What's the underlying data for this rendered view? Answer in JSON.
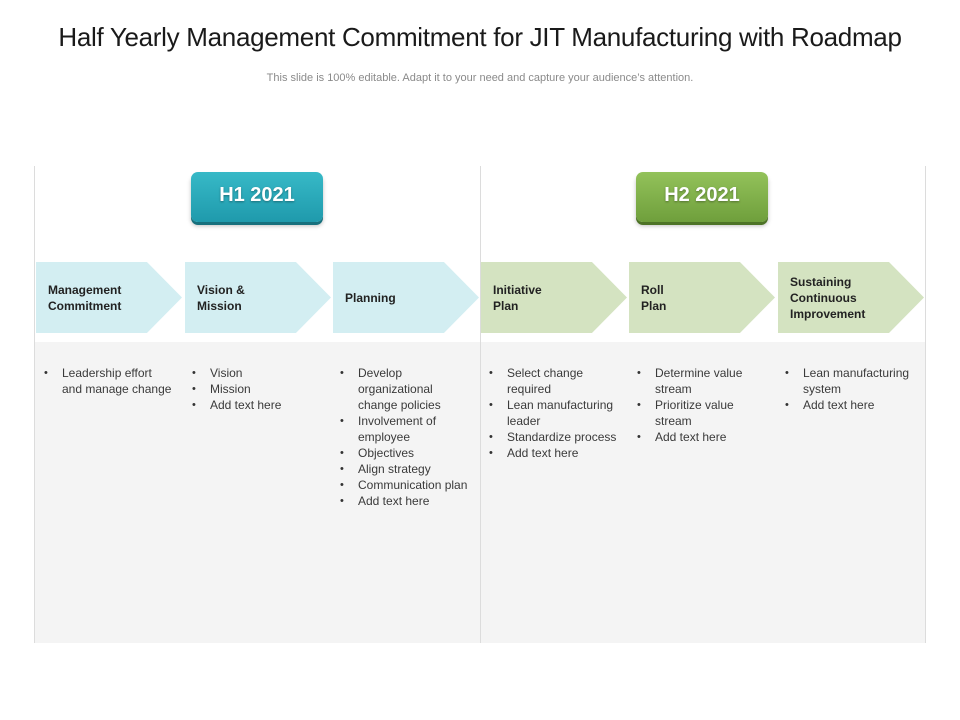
{
  "title": "Half Yearly Management Commitment for JIT Manufacturing with Roadmap",
  "subtitle": "This slide is 100% editable. Adapt it to your need and capture your audience’s attention.",
  "halves": [
    {
      "label": "H1 2021",
      "color": "#2aaabb"
    },
    {
      "label": "H2 2021",
      "color": "#82b14b"
    }
  ],
  "columns": [
    {
      "header": "Management\nCommitment",
      "color": "#d3eef2",
      "items": [
        "Leadership effort\nand manage change"
      ]
    },
    {
      "header": "Vision &\nMission",
      "color": "#d3eef2",
      "items": [
        "Vision",
        "Mission",
        "Add text here"
      ]
    },
    {
      "header": "Planning",
      "color": "#d3eef2",
      "items": [
        "Develop\norganizational\nchange policies",
        "Involvement of\nemployee",
        "Objectives",
        "Align strategy",
        "Communication plan",
        "Add text here"
      ]
    },
    {
      "header": "Initiative\nPlan",
      "color": "#d4e3c1",
      "items": [
        "Select change\nrequired",
        "Lean manufacturing\nleader",
        "Standardize process",
        "Add text here"
      ]
    },
    {
      "header": "Roll\nPlan",
      "color": "#d4e3c1",
      "items": [
        "Determine value\nstream",
        "Prioritize value\nstream",
        "Add text here"
      ]
    },
    {
      "header": "Sustaining\nContinuous\nImprovement",
      "color": "#d4e3c1",
      "items": [
        "Lean manufacturing\nsystem",
        "Add text here"
      ]
    }
  ]
}
